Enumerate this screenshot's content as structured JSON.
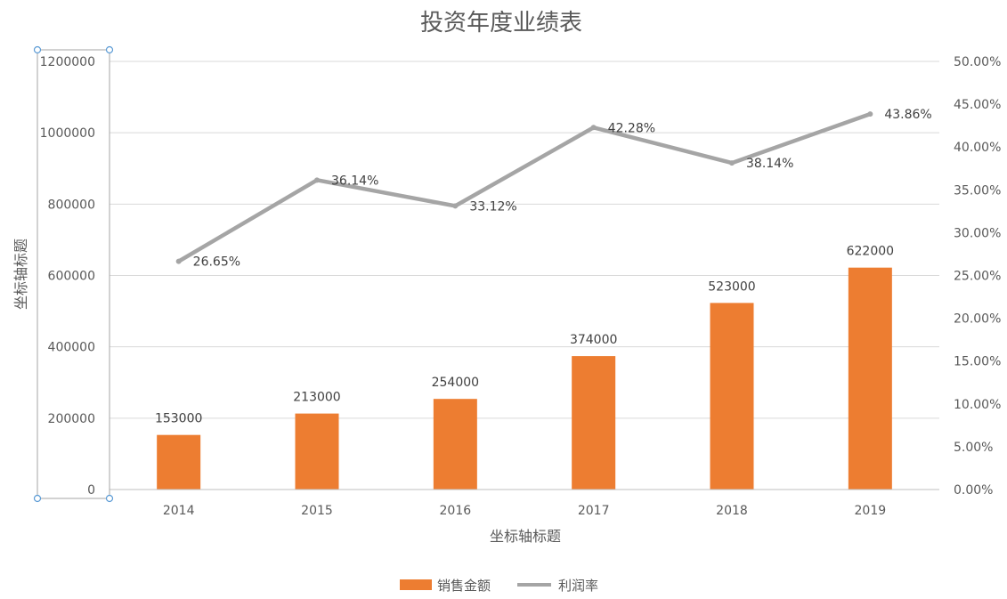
{
  "chart_data": {
    "type": "bar",
    "title": "投资年度业绩表",
    "xlabel": "坐标轴标题",
    "ylabel": "坐标轴标题",
    "categories": [
      "2014",
      "2015",
      "2016",
      "2017",
      "2018",
      "2019"
    ],
    "series": [
      {
        "name": "销售金额",
        "type": "bar",
        "axis": "left",
        "values": [
          153000,
          213000,
          254000,
          374000,
          523000,
          622000
        ],
        "labels": [
          "153000",
          "213000",
          "254000",
          "374000",
          "523000",
          "622000"
        ]
      },
      {
        "name": "利润率",
        "type": "line",
        "axis": "right",
        "values": [
          26.65,
          36.14,
          33.12,
          42.28,
          38.14,
          43.86
        ],
        "labels": [
          "26.65%",
          "36.14%",
          "33.12%",
          "42.28%",
          "38.14%",
          "43.86%"
        ]
      }
    ],
    "ylim": [
      0,
      1200000
    ],
    "y_ticks": [
      "0",
      "200000",
      "400000",
      "600000",
      "800000",
      "1000000",
      "1200000"
    ],
    "y2lim": [
      0,
      50
    ],
    "y2_ticks": [
      "0.00%",
      "5.00%",
      "10.00%",
      "15.00%",
      "20.00%",
      "25.00%",
      "30.00%",
      "35.00%",
      "40.00%",
      "45.00%",
      "50.00%"
    ],
    "grid": true,
    "legend": "bottom",
    "colors": {
      "bar": "#ED7D31",
      "line": "#A5A5A5",
      "grid": "#D9D9D9",
      "text": "#595959",
      "selection": "#5B9BD5"
    }
  }
}
